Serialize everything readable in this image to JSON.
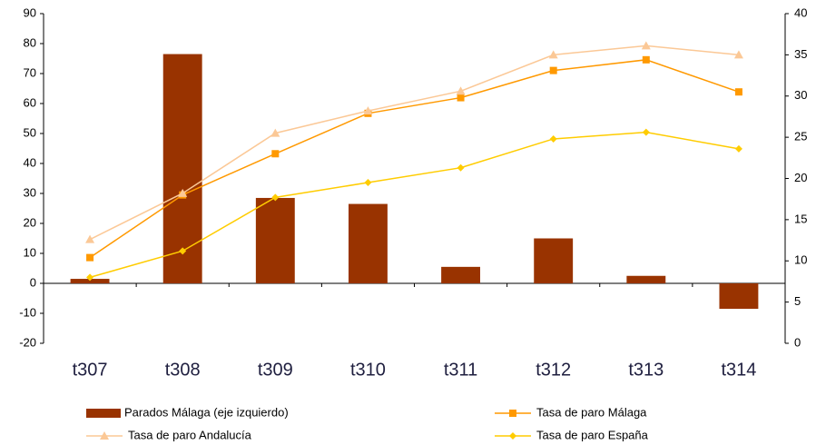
{
  "chart_data": {
    "type": "combo",
    "categories": [
      "t307",
      "t308",
      "t309",
      "t310",
      "t311",
      "t312",
      "t313",
      "t314"
    ],
    "series": [
      {
        "name": "Parados Málaga (eje izquierdo)",
        "type": "bar",
        "axis": "y",
        "color": "#993300",
        "values": [
          1.5,
          76.5,
          28.5,
          26.5,
          5.5,
          15,
          2.5,
          -8.5
        ]
      },
      {
        "name": "Tasa de paro Málaga",
        "type": "line",
        "axis": "y2",
        "color": "#ff9900",
        "marker": "square",
        "values": [
          10.4,
          18.0,
          23.0,
          27.9,
          29.8,
          33.1,
          34.4,
          30.5
        ]
      },
      {
        "name": "Tasa de paro Andalucía",
        "type": "line",
        "axis": "y2",
        "color": "#fbc896",
        "marker": "triangle",
        "values": [
          12.6,
          18.2,
          25.5,
          28.2,
          30.6,
          35.0,
          36.1,
          35.0
        ]
      },
      {
        "name": "Tasa de paro España",
        "type": "line",
        "axis": "y2",
        "color": "#ffcc00",
        "marker": "diamond",
        "values": [
          8.0,
          11.2,
          17.7,
          19.5,
          21.3,
          24.8,
          25.6,
          23.6
        ]
      }
    ],
    "ylim": [
      -20,
      90
    ],
    "yticks": [
      -20,
      -10,
      0,
      10,
      20,
      30,
      40,
      50,
      60,
      70,
      80,
      90
    ],
    "y2lim": [
      0,
      40
    ],
    "y2ticks": [
      0,
      5,
      10,
      15,
      20,
      25,
      30,
      35,
      40
    ],
    "grid": false
  }
}
